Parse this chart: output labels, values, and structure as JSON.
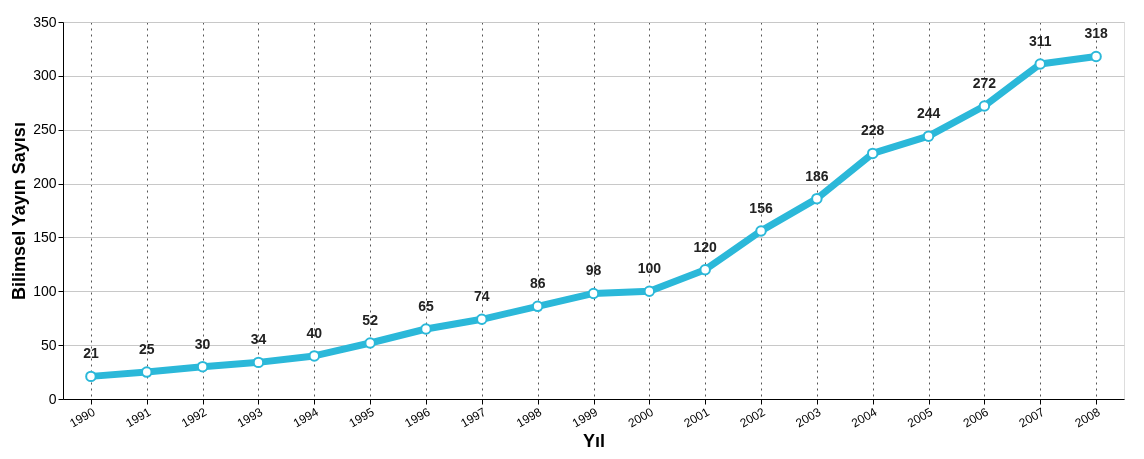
{
  "chart_data": {
    "type": "line",
    "xlabel": "Yıl",
    "ylabel": "Bilimsel Yayın Sayısı",
    "categories": [
      "1990",
      "1991",
      "1992",
      "1993",
      "1994",
      "1995",
      "1996",
      "1997",
      "1998",
      "1999",
      "2000",
      "2001",
      "2002",
      "2003",
      "2004",
      "2005",
      "2006",
      "2007",
      "2008"
    ],
    "series": [
      {
        "color": "#2bb8d9",
        "values": [
          21,
          25,
          30,
          34,
          40,
          52,
          65,
          74,
          86,
          98,
          100,
          120,
          156,
          186,
          228,
          244,
          272,
          311,
          318
        ]
      }
    ],
    "ylim": [
      0,
      350
    ],
    "yticks": [
      0,
      50,
      100,
      150,
      200,
      250,
      300,
      350
    ],
    "grid": true,
    "marker": "circle",
    "line_style": "solid",
    "data_labels": true
  }
}
